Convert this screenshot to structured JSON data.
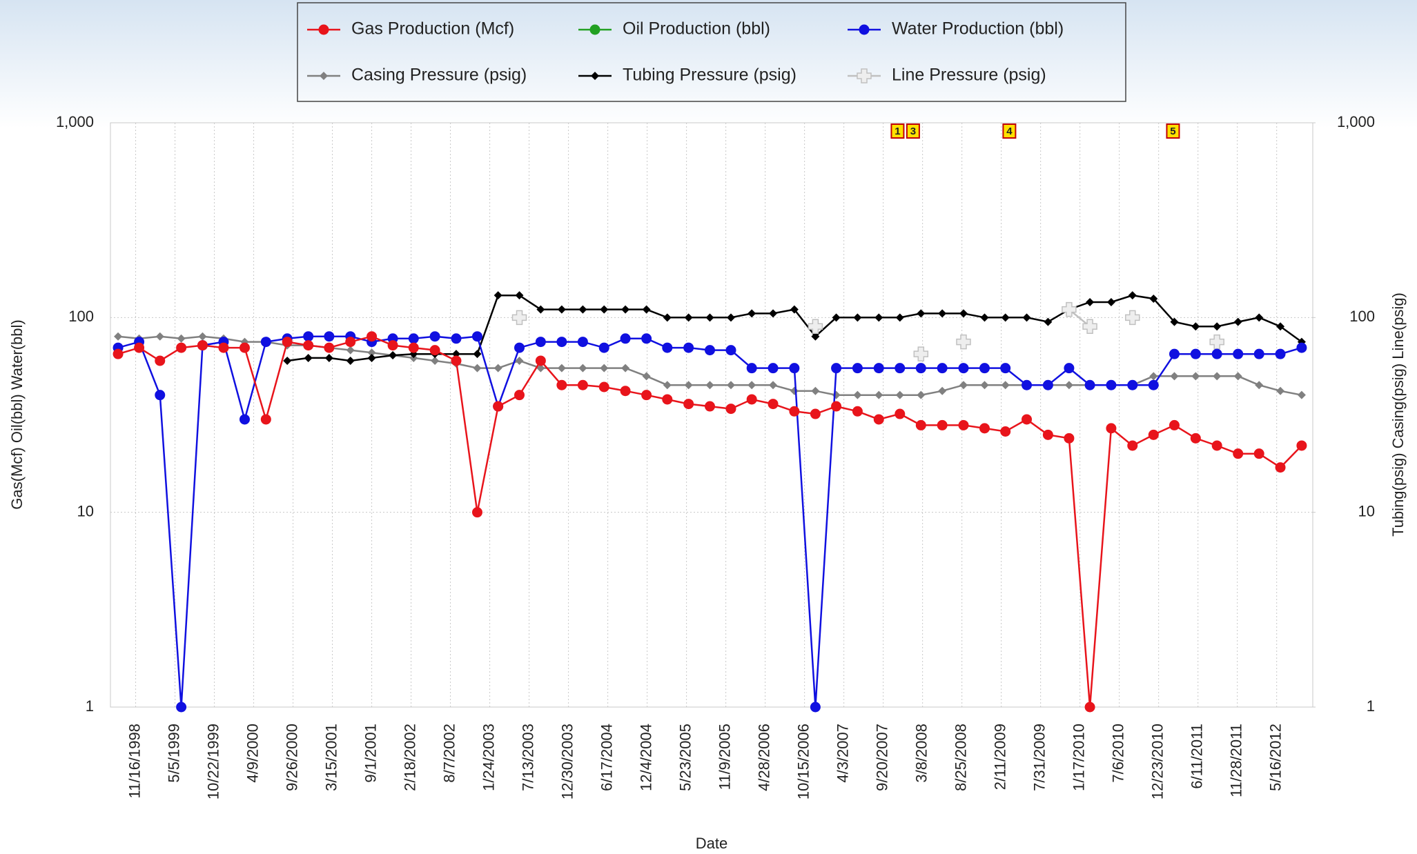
{
  "chart_data": {
    "type": "line",
    "y_label": "Gas(Mcf) Oil(bbl) Water(bbl)",
    "y2_label": "Tubing(psig) Casing(psig) Line(psig)",
    "x_label": "Date",
    "log_scale": true,
    "grid": true,
    "xlim": [
      "7/30/1998",
      "10/19/2012"
    ],
    "xticks": [
      "11/16/1998",
      "5/5/1999",
      "10/22/1999",
      "4/9/2000",
      "9/26/2000",
      "3/15/2001",
      "9/1/2001",
      "2/18/2002",
      "8/7/2002",
      "1/24/2003",
      "7/13/2003",
      "12/30/2003",
      "6/17/2004",
      "12/4/2004",
      "5/23/2005",
      "11/9/2005",
      "4/28/2006",
      "10/15/2006",
      "4/3/2007",
      "9/20/2007",
      "3/8/2008",
      "8/25/2008",
      "2/11/2009",
      "7/31/2009",
      "1/17/2010",
      "7/6/2010",
      "12/23/2010",
      "6/11/2011",
      "11/28/2011",
      "5/16/2012"
    ],
    "ylim": [
      1,
      1000
    ],
    "yticks": [
      1,
      10,
      100,
      {
        "value": 1000,
        "label": "1,000"
      }
    ],
    "y2lim": [
      1,
      1000
    ],
    "y2ticks": [
      1,
      10,
      100,
      {
        "value": 1000,
        "label": "1,000"
      }
    ],
    "x": [
      "9/1/1998",
      "12/1/1998",
      "3/1/1999",
      "6/1/1999",
      "9/1/1999",
      "12/1/1999",
      "3/1/2000",
      "6/1/2000",
      "9/1/2000",
      "12/1/2000",
      "3/1/2001",
      "6/1/2001",
      "9/1/2001",
      "12/1/2001",
      "3/1/2002",
      "6/1/2002",
      "9/1/2002",
      "12/1/2002",
      "3/1/2003",
      "6/1/2003",
      "9/1/2003",
      "12/1/2003",
      "3/1/2004",
      "6/1/2004",
      "9/1/2004",
      "12/1/2004",
      "3/1/2005",
      "6/1/2005",
      "9/1/2005",
      "12/1/2005",
      "3/1/2006",
      "6/1/2006",
      "9/1/2006",
      "12/1/2006",
      "3/1/2007",
      "6/1/2007",
      "9/1/2007",
      "12/1/2007",
      "3/1/2008",
      "6/1/2008",
      "9/1/2008",
      "12/1/2008",
      "3/1/2009",
      "6/1/2009",
      "9/1/2009",
      "12/1/2009",
      "3/1/2010",
      "6/1/2010",
      "9/1/2010",
      "12/1/2010",
      "3/1/2011",
      "6/1/2011",
      "9/1/2011",
      "12/1/2011",
      "3/1/2012",
      "6/1/2012",
      "9/1/2012"
    ],
    "series": [
      {
        "name": "Gas Production (Mcf)",
        "color": "#e8141b",
        "marker": "circle",
        "values": [
          65,
          70,
          60,
          70,
          72,
          70,
          70,
          30,
          75,
          72,
          70,
          75,
          80,
          72,
          70,
          68,
          60,
          10,
          35,
          40,
          60,
          45,
          45,
          44,
          42,
          40,
          38,
          36,
          35,
          34,
          38,
          36,
          33,
          32,
          35,
          33,
          30,
          32,
          28,
          28,
          28,
          27,
          26,
          30,
          25,
          24,
          1,
          27,
          22,
          25,
          28,
          24,
          22,
          20,
          20,
          17,
          22
        ]
      },
      {
        "name": "Oil Production (bbl)",
        "color": "#22a022",
        "marker": "circle",
        "values": [
          null,
          null,
          null,
          null,
          null,
          null,
          null,
          null,
          null,
          null,
          null,
          null,
          null,
          null,
          null,
          null,
          null,
          null,
          null,
          null,
          null,
          null,
          null,
          null,
          null,
          null,
          null,
          null,
          null,
          null,
          null,
          null,
          null,
          null,
          null,
          null,
          null,
          null,
          null,
          null,
          null,
          null,
          null,
          null,
          null,
          null,
          null,
          null,
          null,
          null,
          null,
          null,
          null,
          null,
          null,
          null,
          null
        ]
      },
      {
        "name": "Water Production (bbl)",
        "color": "#1010e0",
        "marker": "circle",
        "values": [
          70,
          75,
          40,
          1,
          72,
          75,
          30,
          75,
          78,
          80,
          80,
          80,
          75,
          78,
          78,
          80,
          78,
          80,
          35,
          70,
          75,
          75,
          75,
          70,
          78,
          78,
          70,
          70,
          68,
          68,
          55,
          55,
          55,
          1,
          55,
          55,
          55,
          55,
          55,
          55,
          55,
          55,
          55,
          45,
          45,
          55,
          45,
          45,
          45,
          45,
          65,
          65,
          65,
          65,
          65,
          65,
          70
        ]
      },
      {
        "name": "Casing Pressure (psig)",
        "color": "#808080",
        "marker": "diamond",
        "axis": "y2",
        "values": [
          80,
          78,
          80,
          78,
          80,
          78,
          75,
          75,
          72,
          72,
          70,
          68,
          66,
          64,
          62,
          60,
          58,
          55,
          55,
          60,
          55,
          55,
          55,
          55,
          55,
          50,
          45,
          45,
          45,
          45,
          45,
          45,
          42,
          42,
          40,
          40,
          40,
          40,
          40,
          42,
          45,
          45,
          45,
          45,
          45,
          45,
          45,
          45,
          45,
          50,
          50,
          50,
          50,
          50,
          45,
          42,
          40
        ]
      },
      {
        "name": "Tubing Pressure (psig)",
        "color": "#000000",
        "marker": "diamond",
        "axis": "y2",
        "values": [
          null,
          null,
          null,
          null,
          null,
          null,
          null,
          null,
          60,
          62,
          62,
          60,
          62,
          64,
          65,
          65,
          65,
          65,
          130,
          130,
          110,
          110,
          110,
          110,
          110,
          110,
          100,
          100,
          100,
          100,
          105,
          105,
          110,
          80,
          100,
          100,
          100,
          100,
          105,
          105,
          105,
          100,
          100,
          100,
          95,
          110,
          120,
          120,
          130,
          125,
          95,
          90,
          90,
          95,
          100,
          90,
          75
        ]
      },
      {
        "name": "Line Pressure (psig)",
        "color": "#c0c0c0",
        "marker": "plus",
        "axis": "y2",
        "values": [
          null,
          null,
          null,
          null,
          null,
          null,
          null,
          null,
          null,
          null,
          null,
          null,
          null,
          null,
          null,
          null,
          null,
          null,
          null,
          100,
          null,
          null,
          null,
          null,
          null,
          null,
          null,
          null,
          null,
          null,
          null,
          null,
          null,
          90,
          null,
          null,
          null,
          null,
          65,
          null,
          75,
          null,
          null,
          null,
          null,
          110,
          90,
          null,
          100,
          null,
          null,
          null,
          75,
          null,
          null,
          null,
          null
        ]
      }
    ],
    "annotations": [
      {
        "label": "1",
        "x": "11/21/2007"
      },
      {
        "label": "3",
        "x": "1/27/2008"
      },
      {
        "label": "4",
        "x": "3/18/2009"
      },
      {
        "label": "5",
        "x": "2/23/2011"
      }
    ]
  }
}
